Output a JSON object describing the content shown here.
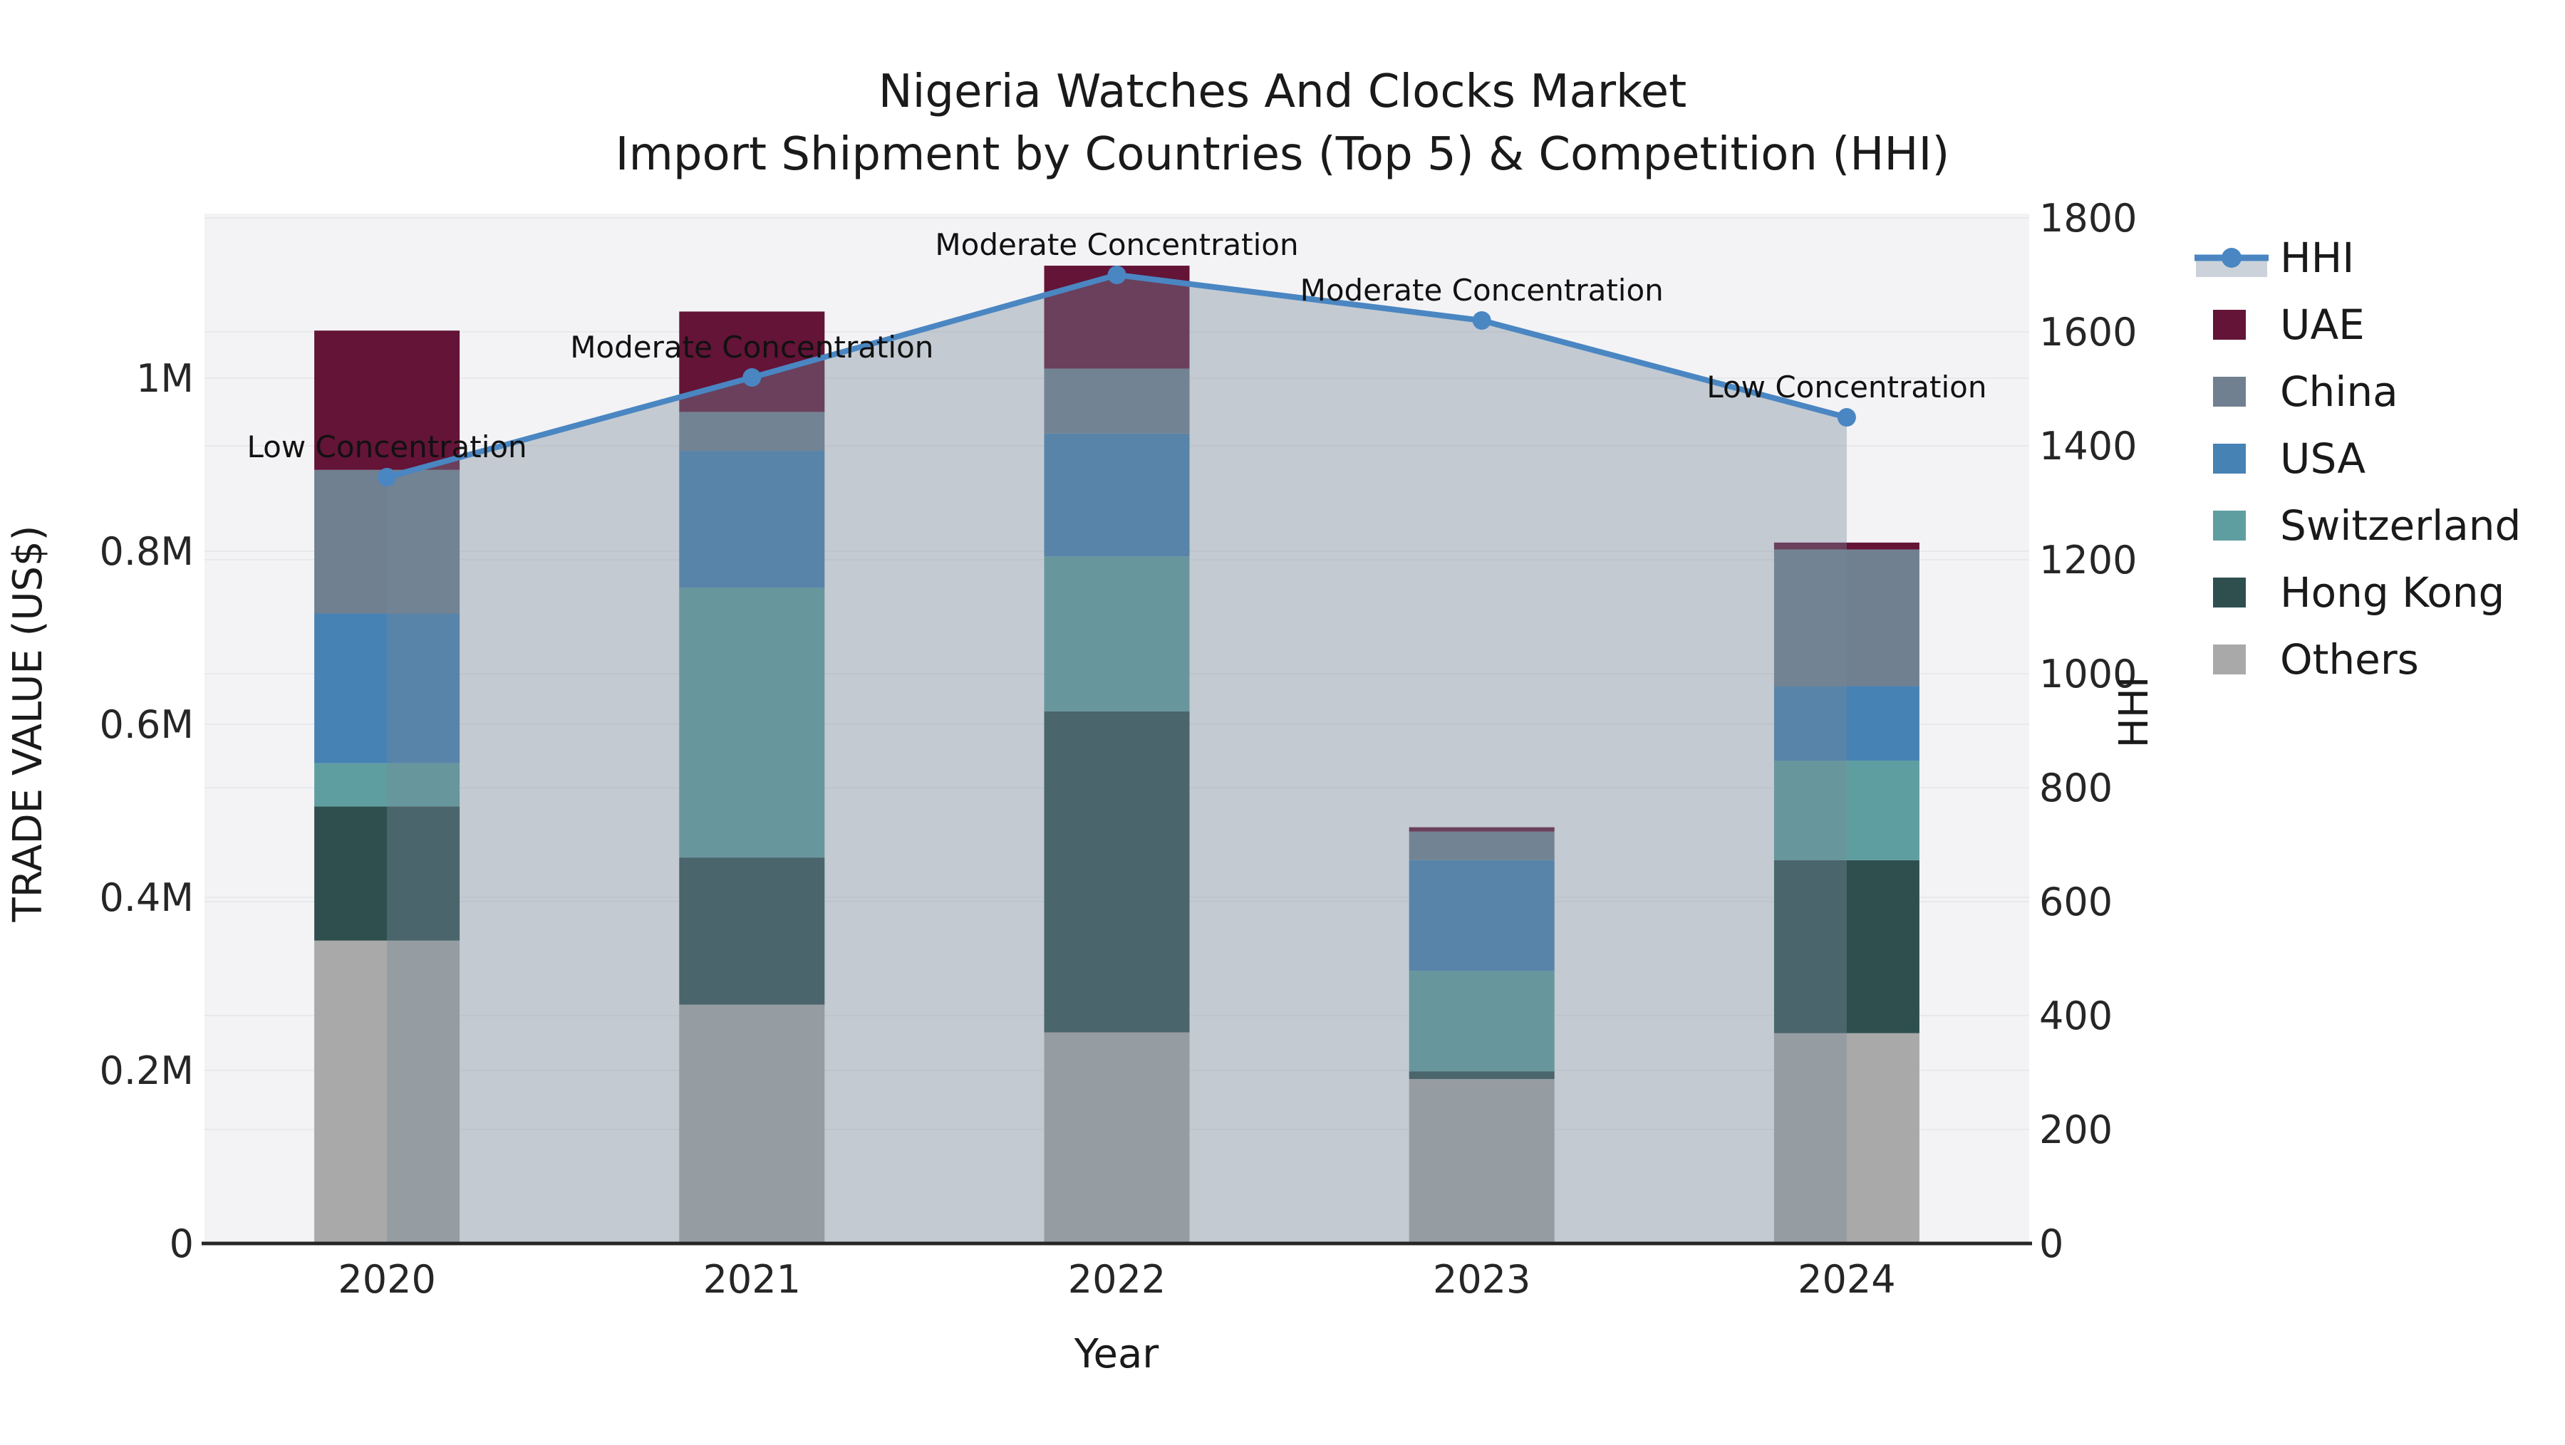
{
  "title": {
    "line1": "Nigeria Watches And Clocks Market",
    "line2": "Import Shipment by Countries (Top 5) & Competition (HHI)"
  },
  "axes": {
    "x_label": "Year",
    "y_left_label": "TRADE VALUE (US$)",
    "y_right_label": "HHI"
  },
  "legend": {
    "items": [
      {
        "label": "HHI",
        "type": "line",
        "color": "#4a86c2",
        "band_color": "#ccd2da"
      },
      {
        "label": "UAE",
        "type": "swatch",
        "color": "#631437"
      },
      {
        "label": "China",
        "type": "swatch",
        "color": "#708090"
      },
      {
        "label": "USA",
        "type": "swatch",
        "color": "#4682b4"
      },
      {
        "label": "Switzerland",
        "type": "swatch",
        "color": "#5f9ea0"
      },
      {
        "label": "Hong Kong",
        "type": "swatch",
        "color": "#2f4f4f"
      },
      {
        "label": "Others",
        "type": "swatch",
        "color": "#a9a9a9"
      }
    ]
  },
  "chart_data": {
    "type": "stacked_bar_with_line",
    "title": "Nigeria Watches And Clocks Market — Import Shipment by Countries (Top 5) & Competition (HHI)",
    "categories": [
      "2020",
      "2021",
      "2022",
      "2023",
      "2024"
    ],
    "x_label": "Year",
    "stack_order_bottom_to_top": [
      "Others",
      "Hong Kong",
      "Switzerland",
      "USA",
      "China",
      "UAE"
    ],
    "series": [
      {
        "name": "UAE",
        "color": "#631437",
        "values": [
          161000,
          116000,
          119000,
          5000,
          8000
        ]
      },
      {
        "name": "China",
        "color": "#708090",
        "values": [
          166000,
          45000,
          75000,
          33000,
          158000
        ]
      },
      {
        "name": "USA",
        "color": "#4682b4",
        "values": [
          173000,
          158000,
          142000,
          128000,
          86000
        ]
      },
      {
        "name": "Switzerland",
        "color": "#5f9ea0",
        "values": [
          50000,
          312000,
          179000,
          116000,
          115000
        ]
      },
      {
        "name": "Hong Kong",
        "color": "#2f4f4f",
        "values": [
          155000,
          170000,
          371000,
          9000,
          200000
        ]
      },
      {
        "name": "Others",
        "color": "#a9a9a9",
        "values": [
          350000,
          276000,
          244000,
          190000,
          243000
        ]
      }
    ],
    "bar_totals": [
      1055000,
      1077000,
      1130000,
      481000,
      810000
    ],
    "line_series": {
      "name": "HHI",
      "color": "#4a86c2",
      "area_fill": "rgba(119,136,153,0.38)",
      "values": [
        1345,
        1520,
        1700,
        1620,
        1450
      ]
    },
    "point_annotations": [
      "Low Concentration",
      "Moderate Concentration",
      "Moderate Concentration",
      "Moderate Concentration",
      "Low Concentration"
    ],
    "y_left": {
      "label": "TRADE VALUE (US$)",
      "ticks": [
        0,
        200000,
        400000,
        600000,
        800000,
        1000000
      ],
      "tick_labels": [
        "0",
        "0.2M",
        "0.4M",
        "0.6M",
        "0.8M",
        "1M"
      ],
      "max": 1185000
    },
    "y_right": {
      "label": "HHI",
      "ticks": [
        0,
        200,
        400,
        600,
        800,
        1000,
        1200,
        1400,
        1600,
        1800
      ],
      "tick_labels": [
        "0",
        "200",
        "400",
        "600",
        "800",
        "1000",
        "1200",
        "1400",
        "1600",
        "1800"
      ],
      "max": 1800
    },
    "grid": true,
    "legend_position": "right",
    "panel_color": "#f3f3f5",
    "grid_color": "#e8e9ec",
    "spine_color": "#262626"
  }
}
